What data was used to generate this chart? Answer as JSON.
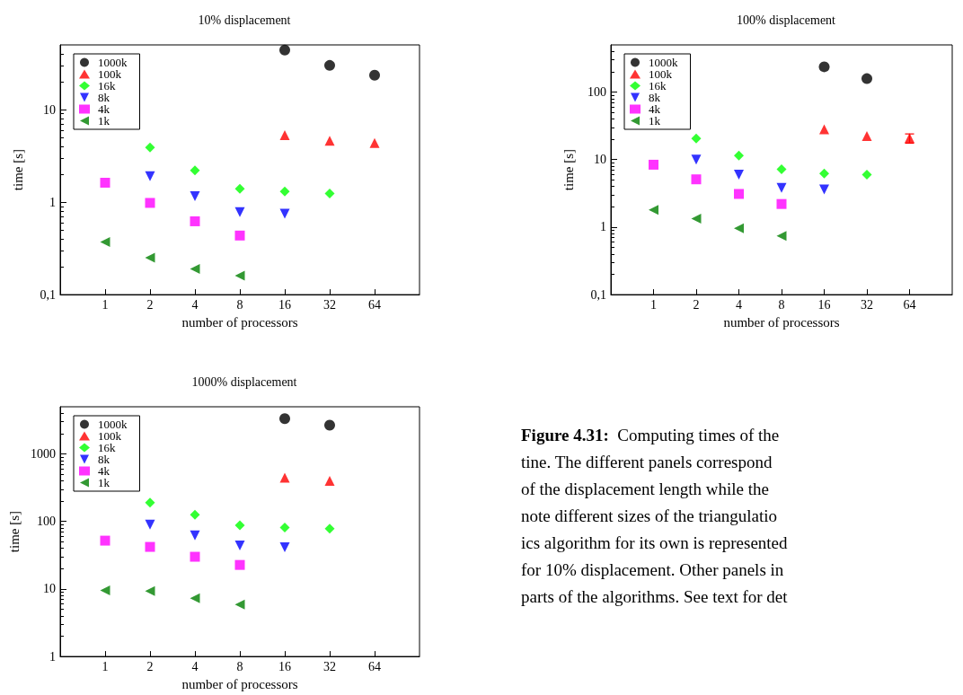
{
  "chart_data": [
    {
      "type": "scatter",
      "title": "10% displacement",
      "xlabel": "number of processors",
      "ylabel": "time [s]",
      "log": "xy",
      "grid": false,
      "legend": "top left",
      "x": [
        1,
        2,
        4,
        8,
        16,
        32,
        64
      ],
      "xlim": [
        0.5,
        128
      ],
      "xticks": [
        1,
        2,
        4,
        8,
        16,
        32,
        64
      ],
      "ylim": [
        0.1,
        50
      ],
      "yticks": [
        {
          "value": 0.1,
          "label": "0,1"
        },
        1,
        10
      ],
      "series": [
        {
          "name": "1000k",
          "color": "#000000",
          "marker": "circle",
          "values": [
            null,
            null,
            null,
            null,
            44,
            30,
            23.5
          ]
        },
        {
          "name": "100k",
          "color": "#ff0000",
          "marker": "triangle",
          "values": [
            null,
            null,
            null,
            null,
            5.3,
            4.6,
            4.35
          ]
        },
        {
          "name": "16k",
          "color": "#00ff00",
          "marker": "diamond",
          "values": [
            null,
            3.9,
            2.2,
            1.39,
            1.3,
            1.24,
            null
          ]
        },
        {
          "name": "8k",
          "color": "#0000ff",
          "marker": "triangle-down",
          "values": [
            null,
            1.9,
            1.16,
            0.78,
            0.75,
            null,
            null
          ]
        },
        {
          "name": "4k",
          "color": "#ff00ff",
          "marker": "square",
          "values": [
            1.62,
            0.98,
            0.62,
            0.435,
            null,
            null,
            null
          ]
        },
        {
          "name": "1k",
          "color": "#008000",
          "marker": "triangle-left",
          "values": [
            0.37,
            0.25,
            0.19,
            0.16,
            null,
            null,
            null
          ]
        }
      ]
    },
    {
      "type": "scatter",
      "title": "100% displacement",
      "xlabel": "number of processors",
      "ylabel": "time [s]",
      "log": "xy",
      "grid": false,
      "legend": "top left",
      "x": [
        1,
        2,
        4,
        8,
        16,
        32,
        64
      ],
      "xlim": [
        0.5,
        128
      ],
      "xticks": [
        1,
        2,
        4,
        8,
        16,
        32,
        64
      ],
      "ylim": [
        0.1,
        500
      ],
      "yticks": [
        {
          "value": 0.1,
          "label": "0,1"
        },
        1,
        10,
        100
      ],
      "series": [
        {
          "name": "1000k",
          "color": "#000000",
          "marker": "circle",
          "values": [
            null,
            null,
            null,
            null,
            237,
            158,
            null
          ]
        },
        {
          "name": "100k",
          "color": "#ff0000",
          "marker": "triangle",
          "values": [
            null,
            null,
            null,
            null,
            28,
            22.3,
            20.8
          ],
          "errors": [
            null,
            null,
            null,
            null,
            null,
            null,
            [
              17.5,
              24
            ]
          ]
        },
        {
          "name": "16k",
          "color": "#00ff00",
          "marker": "diamond",
          "values": [
            null,
            20.6,
            11.5,
            7.2,
            6.2,
            6.0,
            null
          ]
        },
        {
          "name": "8k",
          "color": "#0000ff",
          "marker": "triangle-down",
          "values": [
            null,
            10,
            6.0,
            3.8,
            3.6,
            null,
            null
          ]
        },
        {
          "name": "4k",
          "color": "#ff00ff",
          "marker": "square",
          "values": [
            8.4,
            5.1,
            3.1,
            2.2,
            null,
            null,
            null
          ]
        },
        {
          "name": "1k",
          "color": "#008000",
          "marker": "triangle-left",
          "values": [
            1.8,
            1.33,
            0.96,
            0.74,
            null,
            null,
            null
          ]
        }
      ]
    },
    {
      "type": "scatter",
      "title": "1000% displacement",
      "xlabel": "number of processors",
      "ylabel": "time [s]",
      "log": "xy",
      "grid": false,
      "legend": "top left",
      "x": [
        1,
        2,
        4,
        8,
        16,
        32
      ],
      "xlim": [
        0.5,
        128
      ],
      "xticks": [
        1,
        2,
        4,
        8,
        16,
        32,
        64
      ],
      "ylim": [
        1,
        5000
      ],
      "yticks": [
        1,
        10,
        100,
        1000
      ],
      "series": [
        {
          "name": "1000k",
          "color": "#000000",
          "marker": "circle",
          "values": [
            null,
            null,
            null,
            null,
            3330,
            2670
          ]
        },
        {
          "name": "100k",
          "color": "#ff0000",
          "marker": "triangle",
          "values": [
            null,
            null,
            null,
            null,
            445,
            400
          ]
        },
        {
          "name": "16k",
          "color": "#00ff00",
          "marker": "diamond",
          "values": [
            null,
            190,
            126,
            88,
            81,
            78
          ]
        },
        {
          "name": "8k",
          "color": "#0000ff",
          "marker": "triangle-down",
          "values": [
            null,
            90,
            62,
            44,
            41.5,
            null
          ]
        },
        {
          "name": "4k",
          "color": "#ff00ff",
          "marker": "square",
          "values": [
            52,
            42,
            30,
            22.7,
            null,
            null
          ]
        },
        {
          "name": "1k",
          "color": "#008000",
          "marker": "triangle-left",
          "values": [
            9.5,
            9.3,
            7.3,
            5.9,
            null,
            null
          ]
        }
      ]
    },
    {
      "type": "other",
      "title": "Figure 4.31:",
      "annotations": [
        "Computing times of the",
        "tine. The different panels correspond",
        "of the displacement length while the",
        "note different sizes of the triangulatio",
        "ics algorithm for its own is represented",
        "for 10% displacement. Other panels in",
        "parts of the algorithms. See text for det"
      ]
    }
  ]
}
